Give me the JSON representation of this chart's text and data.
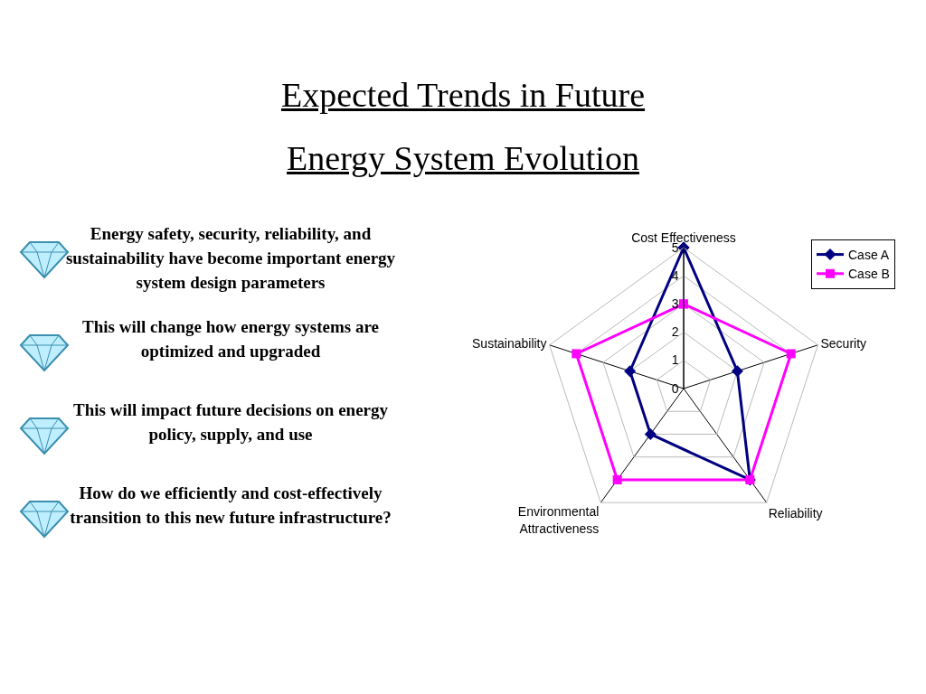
{
  "chart_data": {
    "type": "radar",
    "title": "Expected Trends in Future\nEnergy System Evolution",
    "categories": [
      "Cost Effectiveness",
      "Security",
      "Reliability",
      "Environmental\nAttractiveness",
      "Sustainability"
    ],
    "series": [
      {
        "name": "Case A",
        "color": "#000080",
        "values": [
          5,
          2,
          4,
          2,
          2
        ],
        "marker": "diamond"
      },
      {
        "name": "Case B",
        "color": "#ff00ff",
        "values": [
          3,
          4,
          4,
          4,
          4
        ],
        "marker": "square"
      }
    ],
    "ylim": [
      0,
      5
    ],
    "yticks": [
      0,
      1,
      2,
      3,
      4,
      5
    ],
    "grid": true,
    "legend": "top right",
    "line_style": "solid",
    "annotations": [
      "Energy safety, security, reliability, and sustainability have become important energy system design parameters",
      "This will change how energy systems are optimized and upgraded",
      "This will impact future decisions on energy policy, supply, and use",
      "How do we efficiently and cost-effectively transition to this new future infrastructure?"
    ]
  }
}
